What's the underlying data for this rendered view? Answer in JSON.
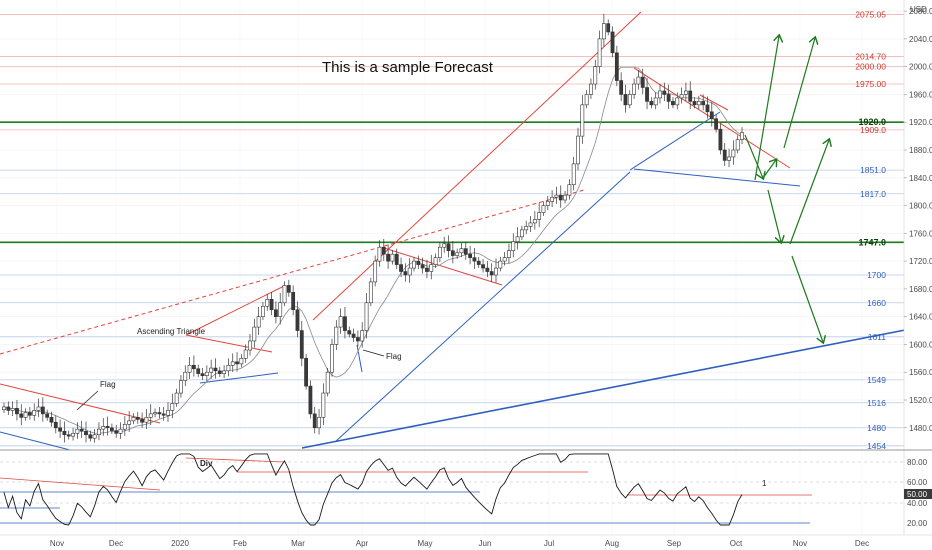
{
  "chart_data": {
    "type": "candlestick",
    "title": "This is a sample Forecast",
    "currency": "USD",
    "ylim": [
      1448,
      2096
    ],
    "y_ticks": [
      1480,
      1520,
      1560,
      1600,
      1640,
      1680,
      1720,
      1760,
      1800,
      1840,
      1880,
      1920,
      1960,
      2000,
      2040,
      2080
    ],
    "y_tick_labels": [
      "1480.00",
      "1520.00",
      "1560.00",
      "1600.00",
      "1640.00",
      "1680.00",
      "1720.00",
      "1760.00",
      "1800.00",
      "1840.00",
      "1880.00",
      "1920.00",
      "1960.00",
      "2000.00",
      "2040.00",
      "2080.00"
    ],
    "x_labels": [
      "Nov",
      "Dec",
      "2020",
      "Feb",
      "Mar",
      "Apr",
      "May",
      "Jun",
      "Jul",
      "Aug",
      "Sep",
      "Oct",
      "Nov",
      "Dec"
    ],
    "levels_red": [
      {
        "label": "2075.05",
        "value": 2075.05
      },
      {
        "label": "2014.70",
        "value": 2014.7
      },
      {
        "label": "2000.00",
        "value": 2000
      },
      {
        "label": "1975.00",
        "value": 1975
      },
      {
        "label": "1909.0",
        "value": 1909
      }
    ],
    "levels_green": [
      {
        "label": "1920.0",
        "value": 1920
      },
      {
        "label": "1747.0",
        "value": 1747
      }
    ],
    "levels_blue": [
      {
        "label": "1851.0",
        "value": 1851
      },
      {
        "label": "1817.0",
        "value": 1817
      },
      {
        "label": "1700",
        "value": 1700
      },
      {
        "label": "1660",
        "value": 1660
      },
      {
        "label": "1611",
        "value": 1611
      },
      {
        "label": "1549",
        "value": 1549
      },
      {
        "label": "1516",
        "value": 1516
      },
      {
        "label": "1480",
        "value": 1480
      },
      {
        "label": "1454",
        "value": 1454
      }
    ],
    "annotations": [
      "Ascending Triangle",
      "Flag",
      "Flag",
      "Div",
      "1"
    ],
    "closes_approx": [
      1510,
      1505,
      1508,
      1500,
      1495,
      1502,
      1498,
      1505,
      1510,
      1500,
      1495,
      1488,
      1480,
      1475,
      1470,
      1468,
      1472,
      1478,
      1475,
      1470,
      1465,
      1470,
      1478,
      1482,
      1480,
      1476,
      1472,
      1478,
      1485,
      1490,
      1495,
      1492,
      1488,
      1495,
      1500,
      1502,
      1500,
      1498,
      1505,
      1515,
      1530,
      1548,
      1560,
      1570,
      1565,
      1558,
      1555,
      1560,
      1566,
      1562,
      1558,
      1562,
      1570,
      1575,
      1572,
      1580,
      1592,
      1605,
      1625,
      1640,
      1655,
      1665,
      1650,
      1640,
      1660,
      1685,
      1675,
      1650,
      1620,
      1580,
      1540,
      1500,
      1480,
      1495,
      1530,
      1560,
      1600,
      1625,
      1640,
      1620,
      1615,
      1610,
      1605,
      1620,
      1660,
      1690,
      1720,
      1740,
      1730,
      1720,
      1730,
      1715,
      1705,
      1700,
      1710,
      1720,
      1715,
      1710,
      1705,
      1715,
      1725,
      1740,
      1745,
      1735,
      1728,
      1732,
      1738,
      1730,
      1725,
      1720,
      1715,
      1710,
      1705,
      1700,
      1710,
      1720,
      1725,
      1735,
      1748,
      1755,
      1765,
      1770,
      1775,
      1780,
      1790,
      1800,
      1806,
      1812,
      1815,
      1808,
      1815,
      1830,
      1860,
      1900,
      1945,
      1960,
      1975,
      2000,
      2040,
      2062,
      2050,
      2020,
      1980,
      1960,
      1945,
      1960,
      1975,
      1985,
      1970,
      1950,
      1945,
      1955,
      1965,
      1960,
      1950,
      1945,
      1955,
      1960,
      1965,
      1950,
      1945,
      1950,
      1945,
      1935,
      1925,
      1910,
      1880,
      1865,
      1870,
      1880,
      1895,
      1905
    ],
    "rsi_levels": [
      "80.00",
      "60.00",
      "50.00",
      "40.00",
      "20.00"
    ],
    "rsi_current": "50.00"
  }
}
